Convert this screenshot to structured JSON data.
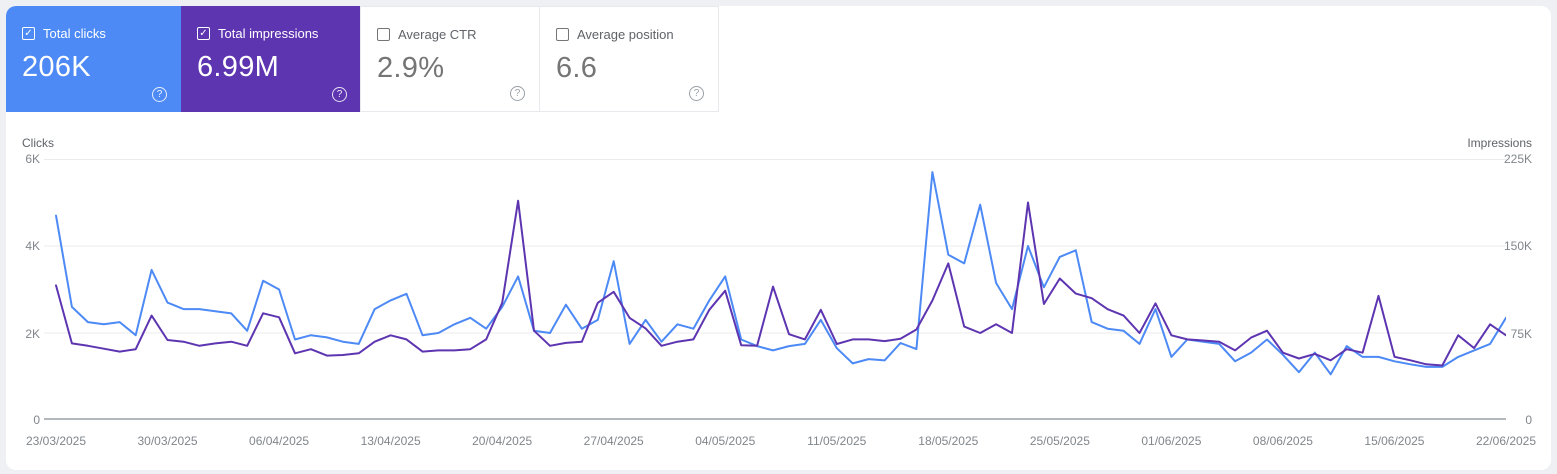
{
  "cards": [
    {
      "id": "clicks",
      "label": "Total clicks",
      "value": "206K",
      "selected": true,
      "color": "#4d8af5",
      "help_glyph": "?"
    },
    {
      "id": "impressions",
      "label": "Total impressions",
      "value": "6.99M",
      "selected": true,
      "color": "#5e35b1",
      "help_glyph": "?"
    },
    {
      "id": "ctr",
      "label": "Average CTR",
      "value": "2.9%",
      "selected": false,
      "color": "#ffffff",
      "help_glyph": "?"
    },
    {
      "id": "position",
      "label": "Average position",
      "value": "6.6",
      "selected": false,
      "color": "#ffffff",
      "help_glyph": "?"
    }
  ],
  "checkmark_glyph": "✓",
  "chart_data": {
    "type": "line",
    "grid": "horizontal",
    "left_axis": {
      "title": "Clicks",
      "ticks": [
        "6K",
        "4K",
        "2K",
        "0"
      ],
      "max": 6000,
      "min": 0
    },
    "right_axis": {
      "title": "Impressions",
      "ticks": [
        "225K",
        "150K",
        "75K",
        "0"
      ],
      "max": 225000,
      "min": 0
    },
    "x_tick_labels": [
      "23/03/2025",
      "30/03/2025",
      "06/04/2025",
      "13/04/2025",
      "20/04/2025",
      "27/04/2025",
      "04/05/2025",
      "11/05/2025",
      "18/05/2025",
      "25/05/2025",
      "01/06/2025",
      "08/06/2025",
      "15/06/2025",
      "22/06/2025"
    ],
    "x_ticks_every_n_points": 7,
    "series": [
      {
        "name": "Total clicks",
        "axis": "left",
        "color": "#4d8af5",
        "values": [
          4700,
          2600,
          2250,
          2200,
          2250,
          1950,
          3450,
          2700,
          2550,
          2550,
          2500,
          2450,
          2050,
          3200,
          3000,
          1850,
          1950,
          1900,
          1800,
          1750,
          2550,
          2750,
          2900,
          1950,
          2000,
          2200,
          2350,
          2100,
          2600,
          3300,
          2050,
          2000,
          2650,
          2100,
          2300,
          3650,
          1750,
          2300,
          1800,
          2200,
          2100,
          2750,
          3300,
          1850,
          1700,
          1600,
          1700,
          1750,
          2300,
          1650,
          1300,
          1400,
          1370,
          1770,
          1630,
          5700,
          3800,
          3600,
          4950,
          3150,
          2550,
          4000,
          3050,
          3750,
          3900,
          2250,
          2100,
          2050,
          1750,
          2550,
          1450,
          1850,
          1800,
          1750,
          1350,
          1550,
          1850,
          1500,
          1100,
          1550,
          1050,
          1700,
          1450,
          1450,
          1350,
          1280,
          1220,
          1220,
          1450,
          1600,
          1750,
          2350
        ]
      },
      {
        "name": "Total impressions",
        "axis": "right",
        "color": "#5e35b1",
        "values": [
          116000,
          66000,
          64000,
          61500,
          59000,
          61000,
          90000,
          69000,
          67500,
          64000,
          66000,
          67500,
          64000,
          92000,
          88500,
          57500,
          61000,
          55500,
          56000,
          57500,
          67500,
          73000,
          69500,
          59000,
          60000,
          60000,
          61000,
          69500,
          101000,
          189000,
          77000,
          64000,
          66500,
          67500,
          101000,
          110500,
          88000,
          79000,
          64000,
          67500,
          69500,
          95000,
          111500,
          64500,
          64000,
          115000,
          74000,
          69500,
          95000,
          65500,
          69500,
          69500,
          68000,
          70000,
          78000,
          103000,
          135000,
          80500,
          75000,
          82500,
          75000,
          187500,
          100000,
          122000,
          109000,
          105000,
          95500,
          90000,
          75000,
          100500,
          73000,
          69500,
          68500,
          67500,
          60000,
          71000,
          77000,
          58000,
          53000,
          57000,
          51500,
          61000,
          58000,
          107000,
          54500,
          51500,
          48000,
          47000,
          73000,
          62000,
          82500,
          73000
        ]
      }
    ],
    "style": {
      "gridline_color": "#ebebeb",
      "baseline_color": "#9aa0a6",
      "line_width": 2
    }
  }
}
